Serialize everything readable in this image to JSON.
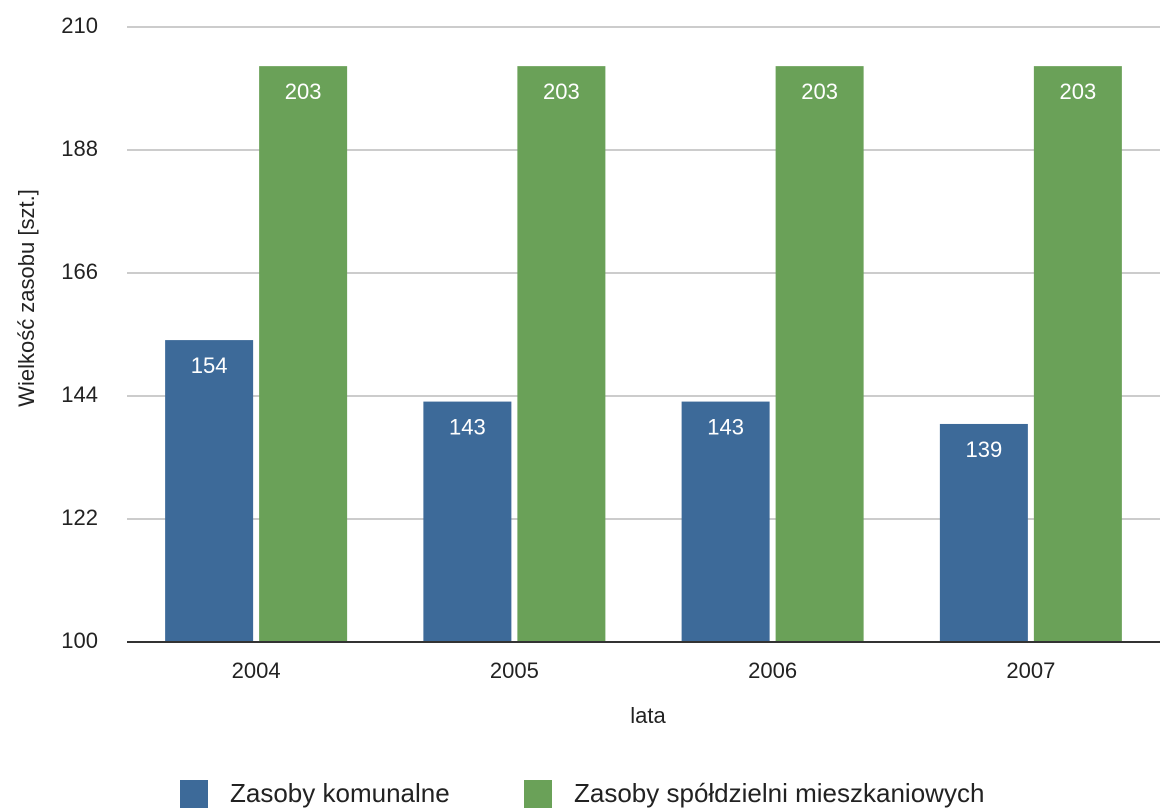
{
  "chart_data": {
    "type": "bar",
    "categories": [
      "2004",
      "2005",
      "2006",
      "2007"
    ],
    "series": [
      {
        "name": "Zasoby komunalne",
        "color": "#3d6a99",
        "values": [
          154,
          143,
          143,
          139
        ]
      },
      {
        "name": "Zasoby spółdzielni mieszkaniowych",
        "color": "#6aa158",
        "values": [
          203,
          203,
          203,
          203
        ]
      }
    ],
    "x_label": "lata",
    "y_label": "Wielkość zasobu [szt.]",
    "ylim": [
      100,
      210
    ],
    "yticks": [
      100,
      122,
      144,
      166,
      188,
      210
    ],
    "grid": true,
    "legend": "bottom"
  }
}
